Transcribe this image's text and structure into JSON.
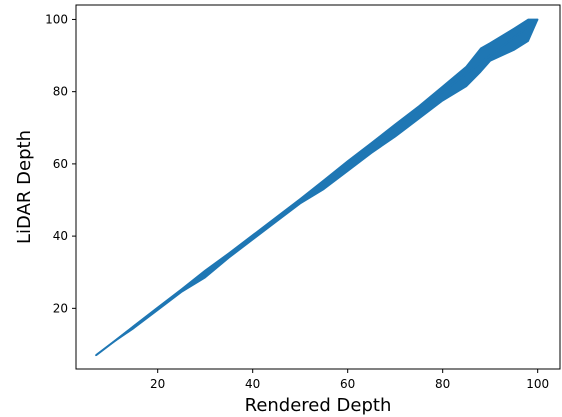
{
  "chart_data": {
    "type": "line",
    "title": "",
    "xlabel": "Rendered Depth",
    "ylabel": "LiDAR Depth",
    "xlim": [
      2.8,
      104.7
    ],
    "ylim": [
      3.2,
      104.0
    ],
    "xticks": [
      20,
      40,
      60,
      80,
      100
    ],
    "yticks": [
      20,
      40,
      60,
      80,
      100
    ],
    "grid": false,
    "legend": "none",
    "series_color": "#1f77b4",
    "series": [
      {
        "x": [
          7,
          10,
          15,
          20,
          25,
          30,
          35,
          40,
          45,
          50,
          55,
          60,
          65,
          70,
          75,
          80,
          85,
          88,
          90,
          95,
          98,
          100
        ],
        "y": [
          7,
          10,
          15,
          20,
          25,
          30,
          35,
          40,
          45,
          50,
          55,
          60,
          65,
          70,
          75,
          80,
          85,
          88,
          90,
          95,
          98,
          100
        ],
        "y_low": [
          7,
          10,
          14.5,
          19.5,
          24.5,
          28.5,
          34,
          39,
          44,
          49,
          53,
          58,
          63,
          67.5,
          72.5,
          77.5,
          81.5,
          85.5,
          88.5,
          91.5,
          94,
          100
        ],
        "y_high": [
          7,
          10,
          15.2,
          20.3,
          25.3,
          30.5,
          35.3,
          40.3,
          45.3,
          50.3,
          55.5,
          60.8,
          65.8,
          71,
          76,
          81.5,
          87,
          92,
          93.5,
          97.5,
          100,
          100
        ]
      }
    ]
  }
}
